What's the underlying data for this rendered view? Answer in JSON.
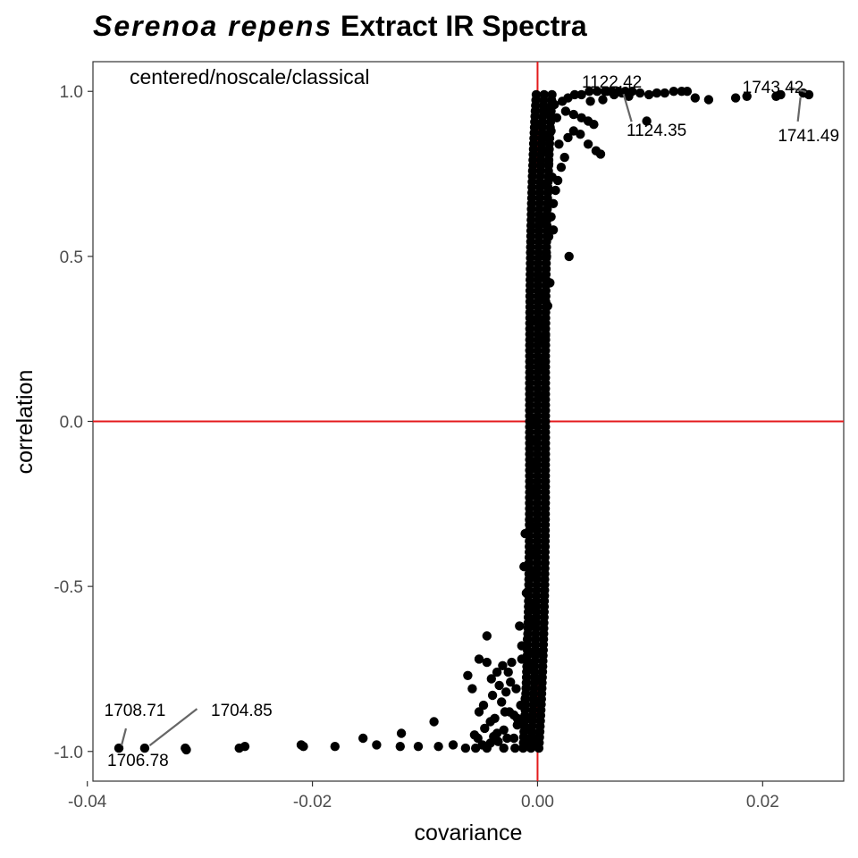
{
  "chart_data": {
    "type": "scatter",
    "title_italic": "Serenoa repens",
    "title_rest": " Extract IR Spectra",
    "xlabel": "covariance",
    "ylabel": "correlation",
    "annotation": "centered/noscale/classical",
    "xlim": [
      -0.0395,
      0.0272
    ],
    "ylim": [
      -1.09,
      1.09
    ],
    "x_ticks": [
      -0.04,
      -0.02,
      0.0,
      0.02
    ],
    "x_tick_labels": [
      "-0.04",
      "-0.02",
      "0.00",
      "0.02"
    ],
    "y_ticks": [
      -1.0,
      -0.5,
      0.0,
      0.5,
      1.0
    ],
    "y_tick_labels": [
      "-1.0",
      "-0.5",
      "0.0",
      "0.5",
      "1.0"
    ],
    "grid": false,
    "ref_lines": {
      "x": 0,
      "y": 0,
      "color": "#e41a1c"
    },
    "point_color": "#000000",
    "labeled_points": [
      {
        "label": "1122.42",
        "x": 0.0074,
        "y": 1.0
      },
      {
        "label": "1124.35",
        "x": 0.0074,
        "y": 1.0
      },
      {
        "label": "1743.42",
        "x": 0.0241,
        "y": 0.99
      },
      {
        "label": "1741.49",
        "x": 0.0236,
        "y": 0.99
      },
      {
        "label": "1708.71",
        "x": -0.0372,
        "y": -0.99
      },
      {
        "label": "1704.85",
        "x": -0.0347,
        "y": -0.99
      },
      {
        "label": "1706.78",
        "x": -0.0347,
        "y": -0.99
      }
    ],
    "points": [
      [
        -0.0372,
        -0.99
      ],
      [
        -0.0349,
        -0.99
      ],
      [
        -0.0313,
        -0.99
      ],
      [
        -0.0312,
        -0.995
      ],
      [
        -0.0265,
        -0.99
      ],
      [
        -0.026,
        -0.985
      ],
      [
        -0.021,
        -0.98
      ],
      [
        -0.0208,
        -0.985
      ],
      [
        -0.018,
        -0.985
      ],
      [
        -0.0155,
        -0.96
      ],
      [
        -0.0143,
        -0.98
      ],
      [
        -0.0122,
        -0.985
      ],
      [
        -0.0121,
        -0.945
      ],
      [
        -0.0106,
        -0.985
      ],
      [
        -0.0092,
        -0.91
      ],
      [
        -0.0088,
        -0.985
      ],
      [
        -0.0075,
        -0.98
      ],
      [
        -0.0064,
        -0.99
      ],
      [
        -0.0055,
        -0.99
      ],
      [
        -0.0045,
        -0.99
      ],
      [
        -0.003,
        -0.99
      ],
      [
        -0.002,
        -0.99
      ],
      [
        -0.001,
        -0.985
      ],
      [
        0.0,
        -0.98
      ],
      [
        -0.0053,
        -0.96
      ],
      [
        -0.0052,
        -0.88
      ],
      [
        -0.0047,
        -0.93
      ],
      [
        -0.0042,
        -0.91
      ],
      [
        -0.0036,
        -0.945
      ],
      [
        -0.003,
        -0.935
      ],
      [
        -0.0021,
        -0.96
      ],
      [
        -0.0012,
        -0.955
      ],
      [
        -0.0032,
        -0.85
      ],
      [
        -0.0025,
        -0.88
      ],
      [
        -0.0018,
        -0.9
      ],
      [
        -0.001,
        -0.93
      ],
      [
        -0.0003,
        -0.96
      ],
      [
        -0.0005,
        -0.9
      ],
      [
        -0.0002,
        -0.85
      ],
      [
        -0.0008,
        -0.97
      ],
      [
        -0.0062,
        -0.77
      ],
      [
        -0.0052,
        -0.72
      ],
      [
        -0.0045,
        -0.73
      ],
      [
        -0.0041,
        -0.78
      ],
      [
        -0.0036,
        -0.76
      ],
      [
        -0.0034,
        -0.8
      ],
      [
        -0.0031,
        -0.74
      ],
      [
        -0.0028,
        -0.82
      ],
      [
        -0.0024,
        -0.79
      ],
      [
        -0.0019,
        -0.81
      ],
      [
        -0.0015,
        -0.86
      ],
      [
        -0.0011,
        -0.84
      ],
      [
        -0.004,
        -0.83
      ],
      [
        -0.0048,
        -0.86
      ],
      [
        -0.0058,
        -0.81
      ],
      [
        -0.0045,
        -0.65
      ],
      [
        -0.0026,
        -0.76
      ],
      [
        -0.0023,
        -0.73
      ],
      [
        -0.0014,
        -0.72
      ],
      [
        -0.0006,
        -0.74
      ],
      [
        -0.0016,
        -0.62
      ],
      [
        -0.0009,
        -0.66
      ],
      [
        -0.0003,
        -0.6
      ],
      [
        -0.001,
        -0.52
      ],
      [
        -0.0004,
        -0.46
      ],
      [
        -0.0012,
        -0.44
      ],
      [
        0.0,
        -0.7
      ],
      [
        0.0,
        -0.78
      ],
      [
        -0.0011,
        -0.34
      ],
      [
        -0.0007,
        -0.3
      ],
      [
        -0.0005,
        -0.22
      ],
      [
        -0.0003,
        -0.13
      ],
      [
        -0.0002,
        -0.06
      ],
      [
        -0.0001,
        0.0
      ],
      [
        0.0001,
        0.08
      ],
      [
        0.0002,
        0.16
      ],
      [
        0.0003,
        0.24
      ],
      [
        0.0004,
        0.3
      ],
      [
        0.0005,
        0.38
      ],
      [
        0.0006,
        0.44
      ],
      [
        0.0008,
        0.5
      ],
      [
        0.001,
        0.56
      ],
      [
        0.0012,
        0.62
      ],
      [
        0.0014,
        0.66
      ],
      [
        0.0009,
        0.35
      ],
      [
        0.0007,
        0.26
      ],
      [
        0.0004,
        0.18
      ],
      [
        0.0011,
        0.42
      ],
      [
        0.0016,
        0.7
      ],
      [
        0.0018,
        0.73
      ],
      [
        0.0021,
        0.77
      ],
      [
        0.0024,
        0.8
      ],
      [
        0.0013,
        0.74
      ],
      [
        0.001,
        0.78
      ],
      [
        0.0007,
        0.82
      ],
      [
        0.0005,
        0.86
      ],
      [
        0.0003,
        0.9
      ],
      [
        0.0006,
        0.93
      ],
      [
        0.001,
        0.95
      ],
      [
        0.0015,
        0.96
      ],
      [
        0.0022,
        0.97
      ],
      [
        0.0027,
        0.98
      ],
      [
        0.0033,
        0.99
      ],
      [
        0.0039,
        0.99
      ],
      [
        0.0046,
        1.0
      ],
      [
        0.0053,
        1.0
      ],
      [
        0.006,
        1.0
      ],
      [
        0.0066,
        1.0
      ],
      [
        0.0072,
        1.0
      ],
      [
        0.0078,
        1.0
      ],
      [
        0.0084,
        1.0
      ],
      [
        0.0091,
        0.995
      ],
      [
        0.0099,
        0.99
      ],
      [
        0.0106,
        0.995
      ],
      [
        0.0113,
        0.995
      ],
      [
        0.0121,
        1.0
      ],
      [
        0.0128,
        1.0
      ],
      [
        0.0133,
        1.0
      ],
      [
        0.014,
        0.98
      ],
      [
        0.0152,
        0.975
      ],
      [
        0.0176,
        0.98
      ],
      [
        0.0186,
        0.985
      ],
      [
        0.0212,
        0.985
      ],
      [
        0.0216,
        0.99
      ],
      [
        0.0236,
        0.995
      ],
      [
        0.0241,
        0.99
      ],
      [
        0.0097,
        0.91
      ],
      [
        0.0028,
        0.5
      ],
      [
        0.0027,
        0.86
      ],
      [
        0.0032,
        0.88
      ],
      [
        0.0038,
        0.87
      ],
      [
        0.0045,
        0.84
      ],
      [
        0.0052,
        0.82
      ],
      [
        0.0056,
        0.81
      ],
      [
        0.0025,
        0.94
      ],
      [
        0.0032,
        0.93
      ],
      [
        0.0039,
        0.92
      ],
      [
        0.0045,
        0.91
      ],
      [
        0.005,
        0.9
      ],
      [
        0.0019,
        0.84
      ],
      [
        0.0017,
        0.92
      ],
      [
        0.0012,
        0.88
      ],
      [
        0.0008,
        0.72
      ],
      [
        0.0014,
        0.58
      ],
      [
        0.0008,
        0.62
      ],
      [
        0.0002,
        0.6
      ],
      [
        0.0001,
        0.44
      ],
      [
        0.0,
        0.3
      ],
      [
        -0.0001,
        -0.2
      ],
      [
        -0.0002,
        -0.32
      ],
      [
        -0.0004,
        -0.4
      ],
      [
        -0.0006,
        -0.56
      ],
      [
        -0.0008,
        -0.62
      ],
      [
        -0.0014,
        -0.68
      ],
      [
        -0.0002,
        -0.7
      ],
      [
        -0.0018,
        -0.92
      ],
      [
        -0.0027,
        -0.96
      ],
      [
        -0.0035,
        -0.97
      ],
      [
        -0.0042,
        -0.975
      ],
      [
        -0.0049,
        -0.98
      ],
      [
        -0.0038,
        -0.9
      ],
      [
        -0.0029,
        -0.88
      ],
      [
        -0.0021,
        -0.89
      ],
      [
        -0.0013,
        -0.91
      ],
      [
        -0.0056,
        -0.95
      ],
      [
        -0.0039,
        -0.955
      ],
      [
        0.0062,
        1.0
      ],
      [
        0.0068,
        0.99
      ],
      [
        0.0075,
        0.995
      ],
      [
        0.0081,
        0.985
      ],
      [
        0.0058,
        0.975
      ],
      [
        0.0047,
        0.97
      ]
    ]
  }
}
